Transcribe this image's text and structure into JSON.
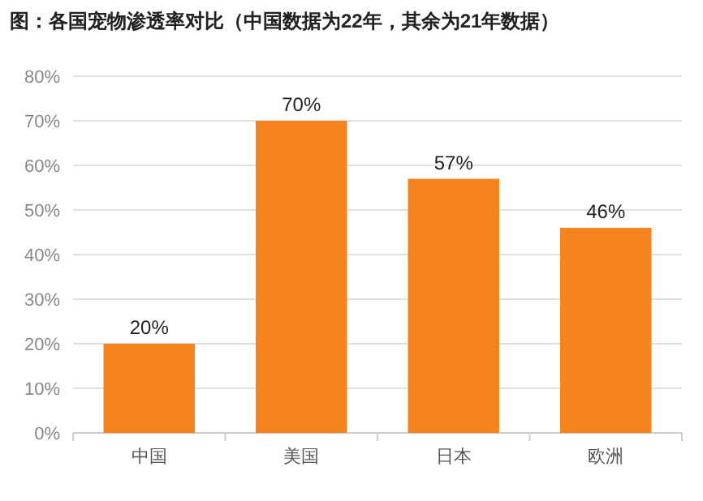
{
  "chart_data": {
    "type": "bar",
    "title": "图：各国宠物渗透率对比（中国数据为22年，其余为21年数据）",
    "categories": [
      "中国",
      "美国",
      "日本",
      "欧洲"
    ],
    "values": [
      20,
      70,
      57,
      46
    ],
    "value_labels": [
      "20%",
      "70%",
      "57%",
      "46%"
    ],
    "color": "#f5841f",
    "ylim": [
      0,
      80
    ],
    "yticks": [
      {
        "value": 0,
        "label": "0%"
      },
      {
        "value": 10,
        "label": "10%"
      },
      {
        "value": 20,
        "label": "20%"
      },
      {
        "value": 30,
        "label": "30%"
      },
      {
        "value": 40,
        "label": "40%"
      },
      {
        "value": 50,
        "label": "50%"
      },
      {
        "value": 60,
        "label": "60%"
      },
      {
        "value": 70,
        "label": "70%"
      },
      {
        "value": 80,
        "label": "80%"
      }
    ],
    "grid": "y"
  }
}
